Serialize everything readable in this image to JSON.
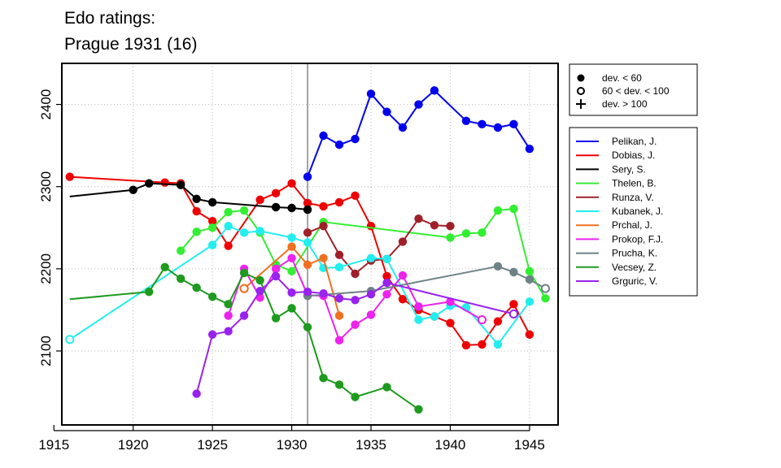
{
  "chart_data": {
    "type": "line",
    "title": "Edo ratings:",
    "subtitle": "Prague 1931 (16)",
    "xlabel": "",
    "ylabel": "",
    "xlim": [
      1915.5,
      1946.8
    ],
    "ylim": [
      2010,
      2450
    ],
    "xticks": [
      1915,
      1920,
      1925,
      1930,
      1935,
      1940,
      1945
    ],
    "yticks": [
      2100,
      2200,
      2300,
      2400
    ],
    "grid": true,
    "event_year": 1931,
    "legend_placement": "right",
    "deviation_legend": [
      {
        "symbol": "filled-circle",
        "label": "dev. < 60"
      },
      {
        "symbol": "open-circle",
        "label": "60 < dev. < 100"
      },
      {
        "symbol": "plus",
        "label": "dev. > 100"
      }
    ],
    "series": [
      {
        "name": "Pelikan, J.",
        "color": "#0000EE",
        "points": [
          [
            1931,
            2312,
            "f"
          ],
          [
            1932,
            2362,
            "f"
          ],
          [
            1933,
            2351,
            "f"
          ],
          [
            1934,
            2358,
            "f"
          ],
          [
            1935,
            2413,
            "f"
          ],
          [
            1936,
            2391,
            "f"
          ],
          [
            1937,
            2372,
            "f"
          ],
          [
            1938,
            2400,
            "f"
          ],
          [
            1939,
            2417,
            "f"
          ],
          [
            1941,
            2380,
            "f"
          ],
          [
            1942,
            2376,
            "f"
          ],
          [
            1943,
            2372,
            "f"
          ],
          [
            1944,
            2376,
            "f"
          ],
          [
            1945,
            2346,
            "f"
          ]
        ]
      },
      {
        "name": "Dobias, J.",
        "color": "#EE0000",
        "points": [
          [
            1916,
            2312,
            "f"
          ],
          [
            1922,
            2305,
            "f"
          ],
          [
            1923,
            2304,
            "f"
          ],
          [
            1924,
            2270,
            "f"
          ],
          [
            1925,
            2258,
            "f"
          ],
          [
            1926,
            2228,
            "f"
          ],
          [
            1928,
            2284,
            "f"
          ],
          [
            1929,
            2292,
            "f"
          ],
          [
            1930,
            2304,
            "f"
          ],
          [
            1931,
            2280,
            "f"
          ],
          [
            1932,
            2276,
            "f"
          ],
          [
            1933,
            2281,
            "f"
          ],
          [
            1934,
            2289,
            "f"
          ],
          [
            1935,
            2252,
            "f"
          ],
          [
            1936,
            2191,
            "f"
          ],
          [
            1937,
            2163,
            "f"
          ],
          [
            1938,
            2150,
            "f"
          ],
          [
            1939,
            2142,
            "f"
          ],
          [
            1940,
            2134,
            "f"
          ],
          [
            1941,
            2107,
            "f"
          ],
          [
            1942,
            2108,
            "f"
          ],
          [
            1943,
            2136,
            "f"
          ],
          [
            1944,
            2157,
            "f"
          ],
          [
            1945,
            2120,
            "f"
          ]
        ]
      },
      {
        "name": "Sery, S.",
        "color": "#000000",
        "points": [
          [
            1916,
            2288,
            "n"
          ],
          [
            1920,
            2296,
            "f"
          ],
          [
            1921,
            2304,
            "f"
          ],
          [
            1923,
            2302,
            "f"
          ],
          [
            1924,
            2285,
            "f"
          ],
          [
            1925,
            2281,
            "f"
          ],
          [
            1929,
            2275,
            "f"
          ],
          [
            1930,
            2274,
            "f"
          ],
          [
            1931,
            2272,
            "f"
          ]
        ]
      },
      {
        "name": "Thelen, B.",
        "color": "#33EE33",
        "points": [
          [
            1923,
            2222,
            "f"
          ],
          [
            1924,
            2245,
            "f"
          ],
          [
            1925,
            2250,
            "f"
          ],
          [
            1926,
            2269,
            "f"
          ],
          [
            1927,
            2271,
            "f"
          ],
          [
            1928,
            2244,
            "f"
          ],
          [
            1929,
            2205,
            "f"
          ],
          [
            1930,
            2197,
            "f"
          ],
          [
            1932,
            2257,
            "f"
          ],
          [
            1940,
            2238,
            "f"
          ],
          [
            1941,
            2243,
            "f"
          ],
          [
            1942,
            2244,
            "f"
          ],
          [
            1943,
            2271,
            "f"
          ],
          [
            1944,
            2273,
            "f"
          ],
          [
            1945,
            2197,
            "f"
          ],
          [
            1946,
            2164,
            "f"
          ]
        ]
      },
      {
        "name": "Runza, V.",
        "color": "#A0202A",
        "points": [
          [
            1931,
            2244,
            "f"
          ],
          [
            1932,
            2252,
            "f"
          ],
          [
            1933,
            2217,
            "f"
          ],
          [
            1934,
            2194,
            "f"
          ],
          [
            1935,
            2210,
            "f"
          ],
          [
            1936,
            2212,
            "f"
          ],
          [
            1937,
            2233,
            "f"
          ],
          [
            1938,
            2261,
            "f"
          ],
          [
            1939,
            2253,
            "f"
          ],
          [
            1940,
            2252,
            "f"
          ]
        ]
      },
      {
        "name": "Kubanek, J.",
        "color": "#22EEEE",
        "points": [
          [
            1916,
            2114,
            "o"
          ],
          [
            1925,
            2229,
            "f"
          ],
          [
            1926,
            2252,
            "f"
          ],
          [
            1927,
            2244,
            "f"
          ],
          [
            1928,
            2246,
            "f"
          ],
          [
            1930,
            2238,
            "f"
          ],
          [
            1931,
            2232,
            "f"
          ],
          [
            1932,
            2201,
            "f"
          ],
          [
            1933,
            2202,
            "f"
          ],
          [
            1935,
            2213,
            "f"
          ],
          [
            1936,
            2212,
            "f"
          ],
          [
            1938,
            2138,
            "f"
          ],
          [
            1939,
            2142,
            "f"
          ],
          [
            1940,
            2155,
            "f"
          ],
          [
            1941,
            2153,
            "f"
          ],
          [
            1943,
            2108,
            "f"
          ],
          [
            1945,
            2160,
            "f"
          ]
        ]
      },
      {
        "name": "Prchal, J.",
        "color": "#F07020",
        "points": [
          [
            1927,
            2176,
            "o"
          ],
          [
            1930,
            2227,
            "f"
          ],
          [
            1931,
            2205,
            "f"
          ],
          [
            1932,
            2213,
            "f"
          ],
          [
            1933,
            2143,
            "f"
          ]
        ]
      },
      {
        "name": "Prokop, F.J.",
        "color": "#EE22EE",
        "points": [
          [
            1926,
            2143,
            "f"
          ],
          [
            1927,
            2200,
            "f"
          ],
          [
            1928,
            2165,
            "f"
          ],
          [
            1929,
            2200,
            "f"
          ],
          [
            1930,
            2213,
            "f"
          ],
          [
            1931,
            2168,
            "f"
          ],
          [
            1932,
            2167,
            "f"
          ],
          [
            1933,
            2113,
            "f"
          ],
          [
            1934,
            2132,
            "f"
          ],
          [
            1935,
            2144,
            "f"
          ],
          [
            1936,
            2169,
            "f"
          ],
          [
            1937,
            2192,
            "f"
          ],
          [
            1938,
            2154,
            "f"
          ],
          [
            1940,
            2160,
            "f"
          ],
          [
            1942,
            2138,
            "o"
          ]
        ]
      },
      {
        "name": "Prucha, K.",
        "color": "#6E8285",
        "points": [
          [
            1931,
            2167,
            "f"
          ],
          [
            1935,
            2173,
            "f"
          ],
          [
            1943,
            2203,
            "f"
          ],
          [
            1944,
            2196,
            "f"
          ],
          [
            1945,
            2187,
            "f"
          ],
          [
            1946,
            2176,
            "o"
          ]
        ]
      },
      {
        "name": "Vecsey, Z.",
        "color": "#1E9A1E",
        "points": [
          [
            1916,
            2163,
            "n"
          ],
          [
            1921,
            2172,
            "f"
          ],
          [
            1922,
            2202,
            "f"
          ],
          [
            1923,
            2188,
            "f"
          ],
          [
            1924,
            2177,
            "f"
          ],
          [
            1925,
            2166,
            "f"
          ],
          [
            1926,
            2157,
            "f"
          ],
          [
            1927,
            2195,
            "f"
          ],
          [
            1928,
            2186,
            "f"
          ],
          [
            1929,
            2140,
            "f"
          ],
          [
            1930,
            2152,
            "f"
          ],
          [
            1931,
            2129,
            "f"
          ],
          [
            1932,
            2067,
            "f"
          ],
          [
            1933,
            2059,
            "f"
          ],
          [
            1934,
            2044,
            "f"
          ],
          [
            1936,
            2056,
            "f"
          ],
          [
            1938,
            2029,
            "f"
          ]
        ]
      },
      {
        "name": "Grguric, V.",
        "color": "#9922EE",
        "points": [
          [
            1924,
            2048,
            "f"
          ],
          [
            1925,
            2120,
            "f"
          ],
          [
            1926,
            2124,
            "f"
          ],
          [
            1927,
            2143,
            "f"
          ],
          [
            1928,
            2173,
            "f"
          ],
          [
            1929,
            2191,
            "f"
          ],
          [
            1930,
            2171,
            "f"
          ],
          [
            1931,
            2172,
            "f"
          ],
          [
            1932,
            2170,
            "f"
          ],
          [
            1933,
            2164,
            "f"
          ],
          [
            1934,
            2162,
            "f"
          ],
          [
            1935,
            2169,
            "f"
          ],
          [
            1936,
            2183,
            "f"
          ],
          [
            1944,
            2145,
            "o"
          ]
        ]
      }
    ]
  }
}
